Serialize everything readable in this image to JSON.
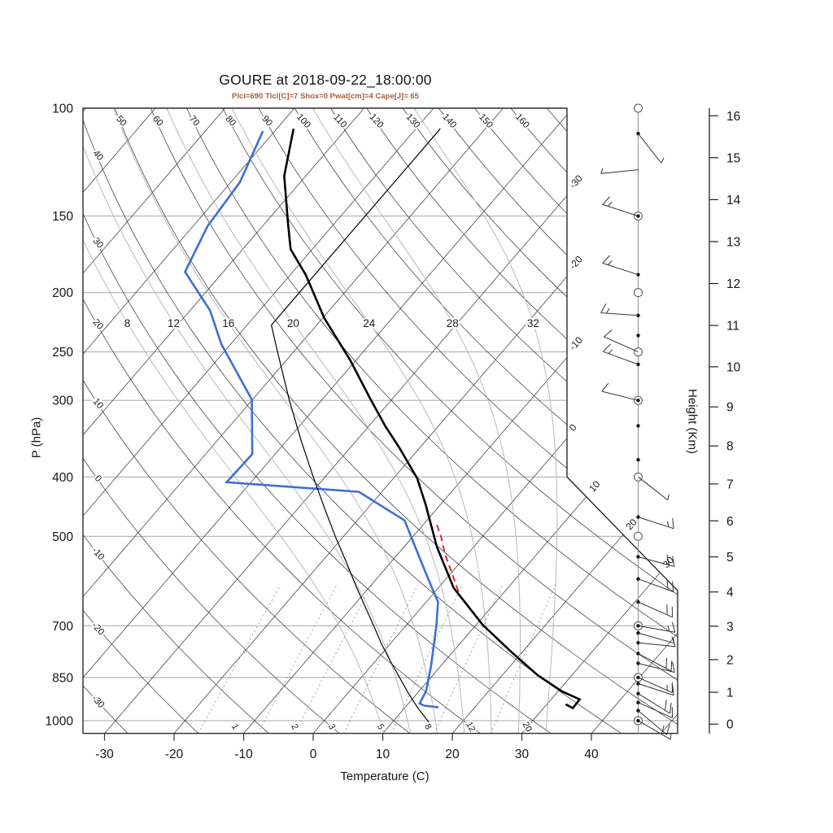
{
  "header": {
    "title": "GOURE at 2018-09-22_18:00:00",
    "subtitle": "Plcl=690 Tlcl[C]=7 Shox=0 Pwat[cm]=4 Cape[J]= 65",
    "stats": {
      "Plcl": 690,
      "Tlcl_C": 7,
      "Shox": 0,
      "Pwat_cm": 4,
      "Cape_J": 65
    },
    "subtitle_color": "#a95e38"
  },
  "axes": {
    "pressure": {
      "label": "P (hPa)",
      "ticks": [
        100,
        150,
        200,
        250,
        300,
        400,
        500,
        700,
        850,
        1000
      ]
    },
    "temperature": {
      "label": "Temperature (C)",
      "ticks": [
        -30,
        -20,
        -10,
        0,
        10,
        20,
        30,
        40
      ]
    },
    "height": {
      "label": "Height (Km)",
      "ticks": [
        0,
        1,
        2,
        3,
        4,
        5,
        6,
        7,
        8,
        9,
        10,
        11,
        12,
        13,
        14,
        15,
        16
      ]
    }
  },
  "background": {
    "isotherm_values": [
      -110,
      -100,
      -90,
      -80,
      -70,
      -60,
      -50,
      -40,
      -30,
      -20,
      -10,
      0,
      10,
      20,
      30,
      40,
      50
    ],
    "isotherm_right_labels": [
      0,
      -10,
      -20,
      -30
    ],
    "isotherm_diag_labels": [
      10,
      20,
      30
    ],
    "dry_adiabat_values": [
      -30,
      -20,
      -10,
      0,
      10,
      20,
      30,
      40,
      50,
      60,
      70,
      80,
      90,
      100,
      110,
      120,
      130,
      140,
      150,
      160,
      170
    ],
    "dry_adiabat_top_labels": [
      50,
      60,
      70,
      80,
      90,
      100,
      110,
      120,
      130,
      140,
      150,
      160
    ],
    "dry_adiabat_left_labels": [
      40,
      30,
      20,
      10,
      0,
      -10,
      -20,
      -30
    ],
    "moist_adiabat_values": [
      8,
      12,
      16,
      20,
      24,
      28,
      32
    ],
    "mixing_ratio_values": [
      1,
      2,
      3,
      5,
      8,
      12,
      20
    ],
    "colors": {
      "isotherm": "#3c3c3c",
      "dry_adiabat": "#3c3c3c",
      "moist_adiabat": "#b9b9b9",
      "mixing_ratio": "#8a8a8a",
      "pressure_grid": "#b0b0b0",
      "boundary": "#2a2a2a",
      "label": "#1c1c1c"
    }
  },
  "chart_data": {
    "type": "skewt_sounding",
    "station": "GOURE",
    "valid_time": "2018-09-22_18:00:00",
    "pressure_range_hPa": [
      100,
      1050
    ],
    "temperature_range_C": [
      -30,
      40
    ],
    "series": [
      {
        "name": "temperature",
        "color": "#000000",
        "style": "solid",
        "width": 2.6,
        "points_p_T": [
          [
            108,
            -77.6
          ],
          [
            129,
            -73.1
          ],
          [
            155,
            -66.5
          ],
          [
            170,
            -63.1
          ],
          [
            187,
            -57.8
          ],
          [
            220,
            -49.8
          ],
          [
            258,
            -40.8
          ],
          [
            298,
            -33.2
          ],
          [
            330,
            -27.7
          ],
          [
            358,
            -23.0
          ],
          [
            402,
            -16.6
          ],
          [
            444,
            -12.1
          ],
          [
            520,
            -5.3
          ],
          [
            607,
            2.2
          ],
          [
            697,
            10.9
          ],
          [
            769,
            18.1
          ],
          [
            842,
            25.0
          ],
          [
            895,
            30.5
          ],
          [
            923,
            34.1
          ],
          [
            954,
            34.2
          ],
          [
            940,
            32.7
          ]
        ]
      },
      {
        "name": "dewpoint",
        "color": "#3f6ed6",
        "style": "solid",
        "width": 2.6,
        "points_p_T": [
          [
            109,
            -81.7
          ],
          [
            132,
            -78.7
          ],
          [
            156,
            -77.9
          ],
          [
            185,
            -75.5
          ],
          [
            214,
            -67.1
          ],
          [
            243,
            -61.3
          ],
          [
            299,
            -50.1
          ],
          [
            367,
            -43.3
          ],
          [
            408,
            -43.5
          ],
          [
            423,
            -23.3
          ],
          [
            471,
            -13.2
          ],
          [
            549,
            -5.8
          ],
          [
            606,
            -1.0
          ],
          [
            640,
            1.7
          ],
          [
            700,
            4.4
          ],
          [
            744,
            6.1
          ],
          [
            814,
            8.6
          ],
          [
            895,
            11.0
          ],
          [
            937,
            11.6
          ],
          [
            945,
            12.5
          ],
          [
            951,
            14.8
          ]
        ]
      },
      {
        "name": "reference-standard-atmosphere",
        "color": "#000000",
        "style": "solid",
        "width": 1.2,
        "points_p_T": [
          [
            1005,
            15.2
          ],
          [
            950,
            11.7
          ],
          [
            900,
            8.6
          ],
          [
            850,
            5.5
          ],
          [
            800,
            2.2
          ],
          [
            750,
            -1.2
          ],
          [
            700,
            -4.6
          ],
          [
            650,
            -8.3
          ],
          [
            600,
            -12.3
          ],
          [
            550,
            -16.5
          ],
          [
            500,
            -21.2
          ],
          [
            450,
            -26.2
          ],
          [
            400,
            -31.7
          ],
          [
            350,
            -37.8
          ],
          [
            300,
            -44.6
          ],
          [
            250,
            -52.3
          ],
          [
            226,
            -56.5
          ],
          [
            200,
            -56.5
          ],
          [
            175,
            -56.5
          ],
          [
            150,
            -56.5
          ],
          [
            125,
            -56.5
          ],
          [
            108,
            -56.5
          ]
        ]
      },
      {
        "name": "parcel-cape-path",
        "color": "#dd2222",
        "style": "dashed",
        "width": 1.9,
        "points_p_T": [
          [
            615,
            3.3
          ],
          [
            575,
            0.2
          ],
          [
            535,
            -3.2
          ],
          [
            500,
            -6.0
          ],
          [
            475,
            -8.4
          ]
        ]
      }
    ],
    "wind_levels": [
      {
        "p": 100,
        "mark": "circle"
      },
      {
        "p": 110,
        "mark": "dot",
        "dir": -52,
        "full": 0,
        "half": 1
      },
      {
        "p": 126,
        "mark": "none",
        "dir": 186,
        "full": 0,
        "half": 1
      },
      {
        "p": 150,
        "mark": "circle_dot",
        "dir": 162,
        "full": 1,
        "half": 1
      },
      {
        "p": 187,
        "mark": "dot",
        "dir": 162,
        "full": 1,
        "half": 1
      },
      {
        "p": 200,
        "mark": "circle"
      },
      {
        "p": 218,
        "mark": "dot",
        "dir": 176,
        "full": 1,
        "half": 1
      },
      {
        "p": 235,
        "mark": "dot"
      },
      {
        "p": 250,
        "mark": "circle",
        "dir": 156,
        "full": 1,
        "half": 0
      },
      {
        "p": 262,
        "mark": "dot",
        "dir": 160,
        "full": 1,
        "half": 1
      },
      {
        "p": 300,
        "mark": "circle_dot",
        "dir": 166,
        "full": 1,
        "half": 0
      },
      {
        "p": 330,
        "mark": "dot"
      },
      {
        "p": 375,
        "mark": "dot"
      },
      {
        "p": 400,
        "mark": "circle",
        "dir": -38,
        "full": 0,
        "half": 1
      },
      {
        "p": 465,
        "mark": "dot",
        "dir": -18,
        "full": 1,
        "half": 1
      },
      {
        "p": 500,
        "mark": "circle"
      },
      {
        "p": 540,
        "mark": "dot",
        "dir": -15,
        "full": 2,
        "half": 0
      },
      {
        "p": 587,
        "mark": "dot",
        "dir": -20,
        "full": 2,
        "half": 0
      },
      {
        "p": 640,
        "mark": "dot",
        "dir": -24,
        "full": 2,
        "half": 0
      },
      {
        "p": 700,
        "mark": "circle_dot",
        "dir": -10,
        "full": 1,
        "half": 1
      },
      {
        "p": 719,
        "mark": "dot",
        "dir": -16,
        "full": 0,
        "half": 1
      },
      {
        "p": 746,
        "mark": "dot",
        "dir": -6,
        "full": 1,
        "half": 0
      },
      {
        "p": 777,
        "mark": "dot",
        "dir": -28,
        "full": 2,
        "half": 0
      },
      {
        "p": 806,
        "mark": "dot",
        "dir": -14,
        "full": 1,
        "half": 0
      },
      {
        "p": 850,
        "mark": "circle_dot",
        "dir": -24,
        "full": 1,
        "half": 1
      },
      {
        "p": 870,
        "mark": "dot",
        "dir": -18,
        "full": 1,
        "half": 0
      },
      {
        "p": 903,
        "mark": "dot",
        "dir": -32,
        "full": 2,
        "half": 0
      },
      {
        "p": 934,
        "mark": "dot",
        "dir": -24,
        "full": 1,
        "half": 0
      },
      {
        "p": 963,
        "mark": "dot",
        "dir": -40,
        "full": 1,
        "half": 1
      },
      {
        "p": 1000,
        "mark": "circle_dot",
        "dir": -30,
        "full": 0,
        "half": 1
      }
    ]
  }
}
